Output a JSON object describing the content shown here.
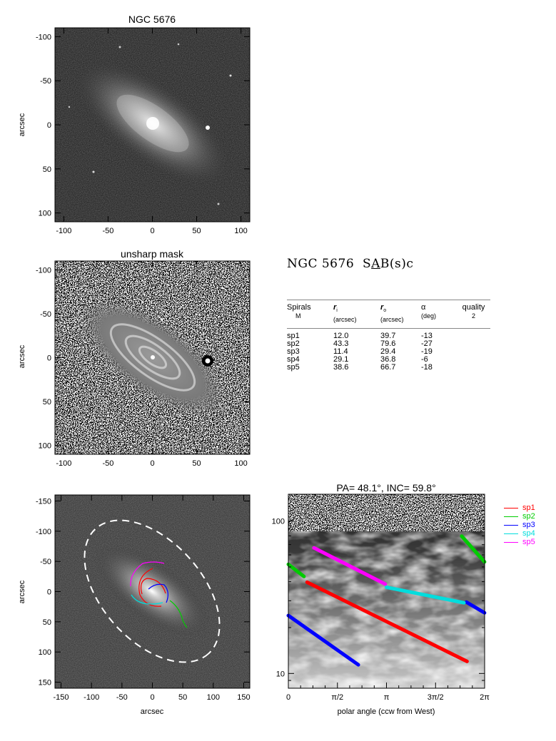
{
  "panel1": {
    "title": "NGC 5676",
    "ylabel": "arcsec",
    "xticks": [
      "-100",
      "-50",
      "0",
      "50",
      "100"
    ],
    "yticks": [
      "100",
      "50",
      "0",
      "-50",
      "-100"
    ]
  },
  "panel2": {
    "title": "unsharp mask",
    "ylabel": "arcsec",
    "xticks": [
      "-100",
      "-50",
      "0",
      "50",
      "100"
    ],
    "yticks": [
      "100",
      "50",
      "0",
      "-50",
      "-100"
    ]
  },
  "panel3": {
    "ylabel": "arcsec",
    "xlabel": "arcsec",
    "xticks": [
      "-150",
      "-100",
      "-50",
      "0",
      "50",
      "100",
      "150"
    ],
    "yticks": [
      "150",
      "100",
      "50",
      "0",
      "-50",
      "-100",
      "-150"
    ]
  },
  "info": {
    "galaxy": "NGC 5676",
    "class_pre": "S",
    "class_under": "A",
    "class_post": "B(s)c",
    "headers": {
      "spirals": "Spirals",
      "spirals_sub": "M",
      "ri": "r",
      "ri_sub": "i",
      "ri_unit": "(arcsec)",
      "ro": "r",
      "ro_sub": "o",
      "ro_unit": "(arcsec)",
      "alpha": "α",
      "alpha_unit": "(deg)",
      "quality": "quality",
      "quality_val": "2"
    },
    "rows": [
      {
        "name": "sp1",
        "ri": "12.0",
        "ro": "39.7",
        "alpha": "-13"
      },
      {
        "name": "sp2",
        "ri": "43.3",
        "ro": "79.6",
        "alpha": "-27"
      },
      {
        "name": "sp3",
        "ri": "11.4",
        "ro": "29.4",
        "alpha": "-19"
      },
      {
        "name": "sp4",
        "ri": "29.1",
        "ro": "36.8",
        "alpha": "-6"
      },
      {
        "name": "sp5",
        "ri": "38.6",
        "ro": "66.7",
        "alpha": "-18"
      }
    ]
  },
  "chart_data": {
    "type": "line",
    "title": "PA=  48.1°, INC=  59.8°",
    "xlabel": "polar angle (ccw from West)",
    "ylabel": "",
    "yscale": "log",
    "xlim": [
      0,
      6.2832
    ],
    "ylim": [
      8,
      150
    ],
    "xtick_labels": [
      "0",
      "π/2",
      "π",
      "3π/2",
      "2π"
    ],
    "ytick_labels": [
      "100",
      "10"
    ],
    "series": [
      {
        "name": "sp1",
        "color": "#ff0000",
        "segments": [
          [
            [
              0.6,
              39.7
            ],
            [
              5.72,
              12.0
            ]
          ]
        ]
      },
      {
        "name": "sp2",
        "color": "#00cc00",
        "segments": [
          [
            [
              0.0,
              52.0
            ],
            [
              0.5,
              43.3
            ]
          ],
          [
            [
              5.55,
              79.6
            ],
            [
              6.28,
              54.0
            ]
          ]
        ]
      },
      {
        "name": "sp3",
        "color": "#0000ff",
        "segments": [
          [
            [
              0.0,
              24.0
            ],
            [
              2.24,
              11.4
            ]
          ],
          [
            [
              5.7,
              29.4
            ],
            [
              6.28,
              25.0
            ]
          ]
        ]
      },
      {
        "name": "sp4",
        "color": "#00dddd",
        "segments": [
          [
            [
              3.14,
              36.8
            ],
            [
              5.62,
              29.1
            ]
          ]
        ]
      },
      {
        "name": "sp5",
        "color": "#ff00ff",
        "segments": [
          [
            [
              0.82,
              66.7
            ],
            [
              3.1,
              38.6
            ]
          ]
        ]
      }
    ]
  }
}
